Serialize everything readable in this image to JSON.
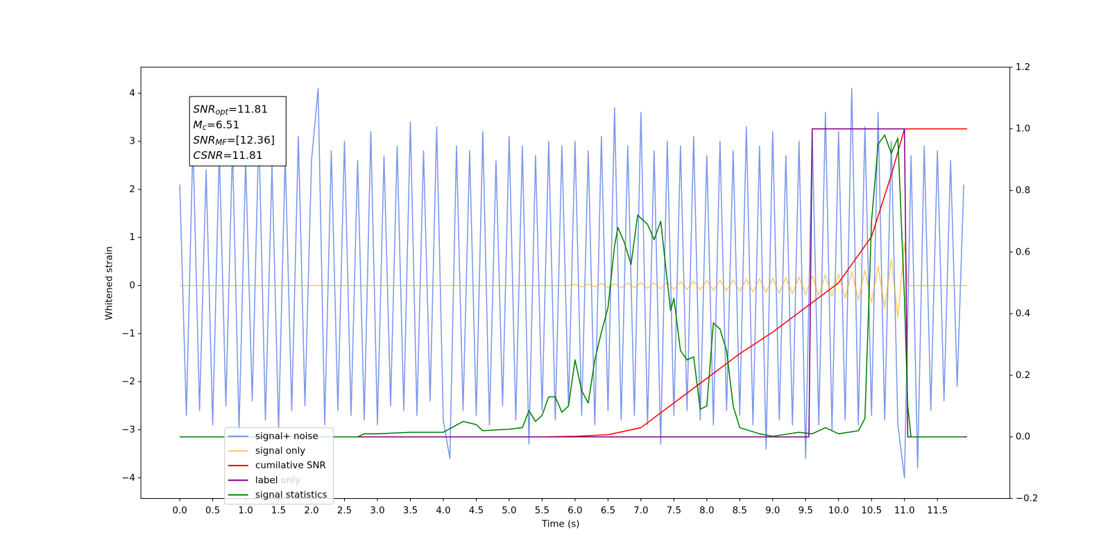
{
  "chart_data": {
    "type": "line",
    "xlabel": "Time (s)",
    "ylabel": "Whitened strain",
    "xlim": [
      -0.59,
      12.6
    ],
    "ylim": [
      -4.43,
      4.54
    ],
    "y2lim": [
      -0.2,
      1.2
    ],
    "xticks": [
      {
        "value": 0,
        "label": "0.0"
      },
      0.5,
      {
        "value": 1,
        "label": "1.0"
      },
      1.5,
      {
        "value": 2,
        "label": "2.0"
      },
      2.5,
      {
        "value": 3,
        "label": "3.0"
      },
      3.5,
      {
        "value": 4,
        "label": "4.0"
      },
      4.5,
      {
        "value": 5,
        "label": "5.0"
      },
      5.5,
      {
        "value": 6,
        "label": "6.0"
      },
      6.5,
      {
        "value": 7,
        "label": "7.0"
      },
      7.5,
      {
        "value": 8,
        "label": "8.0"
      },
      8.5,
      {
        "value": 9,
        "label": "9.0"
      },
      9.5,
      {
        "value": 10,
        "label": "10.0"
      },
      10.5,
      {
        "value": 11,
        "label": "11.0"
      },
      11.5
    ],
    "yticks": [
      {
        "value": -4,
        "label": "−4"
      },
      {
        "value": -3,
        "label": "−3"
      },
      {
        "value": -2,
        "label": "−2"
      },
      {
        "value": -1,
        "label": "−1"
      },
      0,
      1,
      2,
      3,
      4
    ],
    "y2ticks": [
      {
        "value": -0.2,
        "label": "−0.2"
      },
      {
        "value": 0,
        "label": "0.0"
      },
      0.2,
      0.4,
      0.6,
      0.8,
      {
        "value": 1,
        "label": "1.0"
      },
      1.2
    ],
    "series": [
      {
        "name": "signal+ noise",
        "color": "#4169e1",
        "alpha": 0.7,
        "axis": "y",
        "x": [
          0.0,
          0.1,
          0.2,
          0.3,
          0.4,
          0.5,
          0.6,
          0.7,
          0.8,
          0.9,
          1.0,
          1.1,
          1.2,
          1.3,
          1.4,
          1.5,
          1.6,
          1.7,
          1.8,
          1.9,
          2.0,
          2.1,
          2.2,
          2.3,
          2.4,
          2.5,
          2.6,
          2.7,
          2.8,
          2.9,
          3.0,
          3.1,
          3.2,
          3.3,
          3.4,
          3.5,
          3.6,
          3.7,
          3.8,
          3.9,
          4.0,
          4.1,
          4.2,
          4.3,
          4.4,
          4.5,
          4.6,
          4.7,
          4.8,
          4.9,
          5.0,
          5.1,
          5.2,
          5.3,
          5.4,
          5.5,
          5.6,
          5.7,
          5.8,
          5.9,
          6.0,
          6.1,
          6.2,
          6.3,
          6.4,
          6.5,
          6.6,
          6.7,
          6.8,
          6.9,
          7.0,
          7.1,
          7.2,
          7.3,
          7.4,
          7.5,
          7.6,
          7.7,
          7.8,
          7.9,
          8.0,
          8.1,
          8.2,
          8.3,
          8.4,
          8.5,
          8.6,
          8.7,
          8.8,
          8.9,
          9.0,
          9.1,
          9.2,
          9.3,
          9.4,
          9.5,
          9.6,
          9.7,
          9.8,
          9.9,
          10.0,
          10.1,
          10.2,
          10.3,
          10.4,
          10.5,
          10.6,
          10.7,
          10.8,
          10.9,
          11.0,
          11.1,
          11.2,
          11.3,
          11.4,
          11.5,
          11.6,
          11.7,
          11.8,
          11.9
        ],
        "values": [
          2.1,
          -2.7,
          3.0,
          -2.6,
          2.4,
          -2.9,
          2.8,
          -2.5,
          2.9,
          -3.0,
          2.6,
          -2.4,
          3.2,
          -2.8,
          2.5,
          -3.0,
          2.7,
          -2.6,
          3.1,
          -2.5,
          2.6,
          4.1,
          -2.9,
          2.8,
          -2.6,
          3.0,
          -2.7,
          2.6,
          -2.8,
          3.2,
          -2.9,
          2.7,
          -2.5,
          2.9,
          -2.6,
          3.4,
          -2.7,
          2.8,
          -2.4,
          3.3,
          -2.8,
          -3.6,
          2.9,
          -2.6,
          2.8,
          -2.7,
          3.2,
          -2.9,
          2.6,
          -2.5,
          3.1,
          -2.8,
          2.9,
          -3.3,
          2.7,
          -2.6,
          3.0,
          -2.8,
          2.9,
          -2.5,
          3.0,
          -2.7,
          2.8,
          -2.9,
          3.1,
          -2.6,
          3.7,
          -2.8,
          2.9,
          -2.7,
          3.6,
          -2.9,
          2.8,
          -3.3,
          3.0,
          -2.7,
          2.9,
          -2.6,
          3.1,
          -2.8,
          2.7,
          -2.9,
          3.0,
          -2.6,
          2.8,
          -2.7,
          3.3,
          -2.9,
          2.9,
          -3.4,
          3.2,
          -2.8,
          2.7,
          -2.9,
          3.0,
          -3.6,
          3.2,
          -2.9,
          3.6,
          -3.0,
          3.2,
          -2.8,
          4.1,
          -2.9,
          3.3,
          -2.7,
          3.6,
          -2.8,
          3.0,
          -2.9,
          -4.0,
          2.7,
          -3.8,
          2.9,
          -2.6,
          2.8,
          -2.4,
          2.6,
          -2.1,
          2.1
        ]
      },
      {
        "name": "signal only",
        "color": "#ffa500",
        "alpha": 0.6,
        "axis": "y",
        "x": [
          0.0,
          5.9,
          6.0,
          6.1,
          6.2,
          6.3,
          6.4,
          6.5,
          6.6,
          6.7,
          6.8,
          6.9,
          7.0,
          7.1,
          7.2,
          7.3,
          7.4,
          7.5,
          7.6,
          7.7,
          7.8,
          7.9,
          8.0,
          8.1,
          8.2,
          8.3,
          8.4,
          8.5,
          8.6,
          8.7,
          8.8,
          8.9,
          9.0,
          9.1,
          9.2,
          9.3,
          9.4,
          9.5,
          9.6,
          9.7,
          9.8,
          9.9,
          10.0,
          10.1,
          10.2,
          10.3,
          10.4,
          10.5,
          10.6,
          10.7,
          10.8,
          10.9,
          11.0,
          11.05,
          11.95
        ],
        "values": [
          0,
          0,
          0.02,
          -0.03,
          0.03,
          -0.03,
          0.04,
          -0.04,
          0.04,
          -0.05,
          0.05,
          -0.05,
          0.06,
          -0.06,
          0.06,
          -0.07,
          0.07,
          -0.08,
          0.08,
          -0.08,
          0.09,
          -0.09,
          0.1,
          -0.1,
          0.11,
          -0.11,
          0.12,
          -0.12,
          0.13,
          -0.13,
          0.14,
          -0.14,
          0.15,
          -0.16,
          0.16,
          -0.17,
          0.18,
          -0.19,
          0.2,
          -0.21,
          0.22,
          -0.23,
          0.24,
          -0.26,
          0.28,
          -0.3,
          0.32,
          -0.36,
          0.4,
          -0.46,
          0.54,
          -0.66,
          0.88,
          0,
          0
        ]
      },
      {
        "name": "cumilative SNR",
        "color": "#ff0000",
        "alpha": 1,
        "axis": "y2",
        "x": [
          0.0,
          5.5,
          6.0,
          6.5,
          7.0,
          7.5,
          8.0,
          8.5,
          9.0,
          9.5,
          10.0,
          10.5,
          10.8,
          11.0,
          11.95
        ],
        "values": [
          0,
          0,
          0.002,
          0.007,
          0.03,
          0.11,
          0.19,
          0.27,
          0.34,
          0.42,
          0.5,
          0.65,
          0.85,
          1.0,
          1.0
        ]
      },
      {
        "name": "label",
        "color": "#800080",
        "alpha": 1,
        "axis": "y2",
        "x": [
          0.0,
          9.55,
          9.6,
          11.0,
          11.05,
          11.95
        ],
        "values": [
          0,
          0,
          1,
          1,
          0,
          0
        ]
      },
      {
        "name": "signal statistics",
        "color": "#008000",
        "alpha": 1,
        "axis": "y2",
        "x": [
          0.0,
          2.7,
          2.8,
          3.0,
          3.5,
          4.0,
          4.3,
          4.5,
          4.6,
          5.0,
          5.2,
          5.3,
          5.4,
          5.5,
          5.6,
          5.7,
          5.8,
          5.9,
          6.0,
          6.1,
          6.2,
          6.3,
          6.4,
          6.5,
          6.6,
          6.65,
          6.75,
          6.85,
          6.95,
          7.1,
          7.2,
          7.3,
          7.45,
          7.5,
          7.6,
          7.7,
          7.8,
          7.9,
          8.0,
          8.1,
          8.2,
          8.3,
          8.4,
          8.5,
          8.8,
          9.0,
          9.4,
          9.6,
          9.8,
          10.0,
          10.3,
          10.4,
          10.5,
          10.6,
          10.7,
          10.8,
          10.9,
          11.0,
          11.05,
          11.1,
          11.9
        ],
        "values": [
          0,
          0,
          0.01,
          0.01,
          0.015,
          0.015,
          0.05,
          0.04,
          0.02,
          0.025,
          0.03,
          0.085,
          0.05,
          0.07,
          0.13,
          0.13,
          0.08,
          0.1,
          0.25,
          0.15,
          0.11,
          0.25,
          0.34,
          0.42,
          0.62,
          0.68,
          0.63,
          0.56,
          0.72,
          0.69,
          0.64,
          0.7,
          0.41,
          0.45,
          0.28,
          0.25,
          0.26,
          0.09,
          0.1,
          0.37,
          0.35,
          0.28,
          0.1,
          0.03,
          0.01,
          0.002,
          0.015,
          0.01,
          0.03,
          0.01,
          0.02,
          0.06,
          0.7,
          0.95,
          0.98,
          0.92,
          0.97,
          0.45,
          0.1,
          0,
          0
        ]
      }
    ],
    "annotations": [
      "label only"
    ],
    "info_box": [
      {
        "symbol": "SNR",
        "subscript": "opt",
        "text": "=11.81"
      },
      {
        "symbol": "M",
        "subscript": "c",
        "text": "=6.51"
      },
      {
        "symbol": "SNR",
        "subscript": "MF",
        "text": "=[12.36]"
      },
      {
        "symbol": "CSNR",
        "text": "=11.81"
      }
    ]
  }
}
